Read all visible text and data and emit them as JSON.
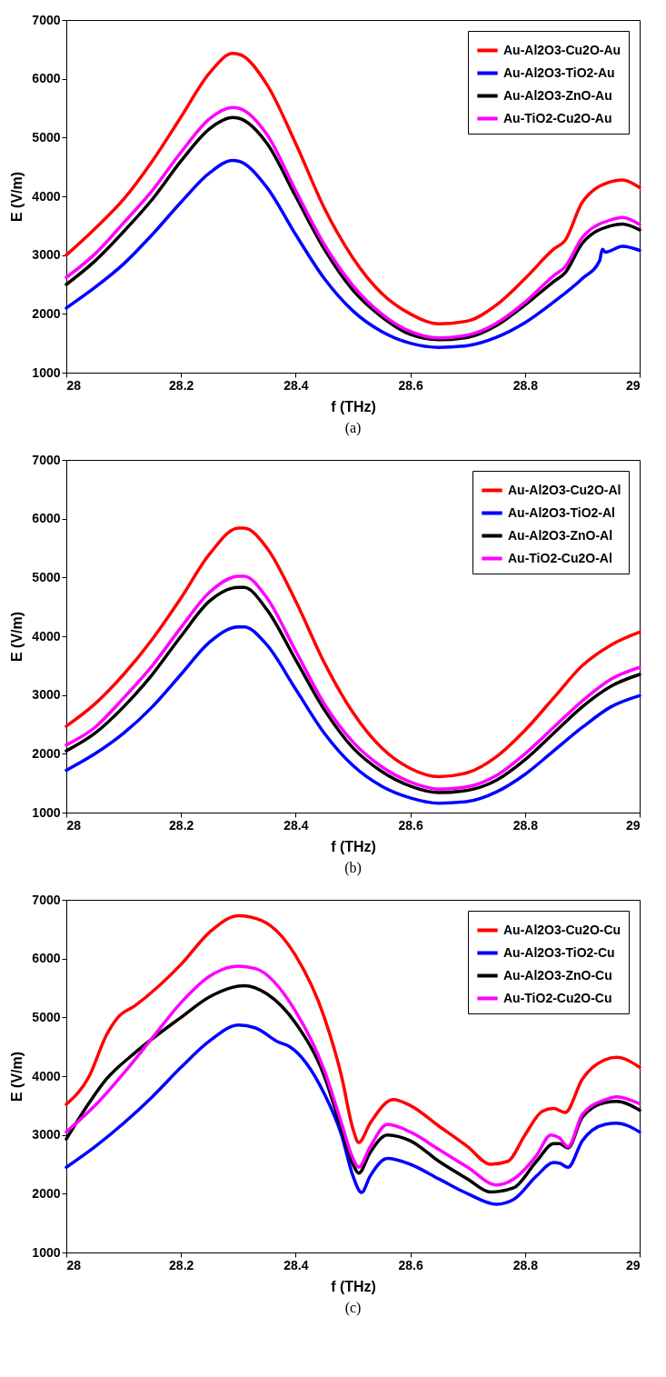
{
  "chart_data": [
    {
      "type": "line",
      "xlabel": "f (THz)",
      "ylabel": "E (V/m)",
      "annotations": [
        "(a)"
      ],
      "xlim": [
        28,
        29
      ],
      "ylim": [
        1000,
        7000
      ],
      "xticks": [
        28,
        28.2,
        28.4,
        28.6,
        28.8,
        29
      ],
      "yticks": [
        1000,
        2000,
        3000,
        4000,
        5000,
        6000,
        7000
      ],
      "grid": false,
      "legend": "top right",
      "line_style": "solid",
      "marker": "none",
      "series": [
        {
          "name": "Au-Al2O3-Cu2O-Au",
          "color": "#ff0000",
          "x": [
            28,
            28.05,
            28.1,
            28.15,
            28.2,
            28.25,
            28.29,
            28.3,
            28.35,
            28.4,
            28.45,
            28.5,
            28.55,
            28.6,
            28.65,
            28.7,
            28.75,
            28.8,
            28.85,
            28.87,
            28.9,
            28.95,
            28.97,
            29
          ],
          "values": [
            3000,
            3450,
            3950,
            4600,
            5350,
            6100,
            6430,
            6420,
            5900,
            4900,
            3800,
            2950,
            2350,
            2000,
            1830,
            1880,
            2150,
            2600,
            3100,
            3250,
            3900,
            4250,
            4280,
            4150
          ]
        },
        {
          "name": "Au-Al2O3-TiO2-Au",
          "color": "#0000ff",
          "x": [
            28,
            28.05,
            28.1,
            28.15,
            28.2,
            28.25,
            28.29,
            28.3,
            28.35,
            28.4,
            28.45,
            28.5,
            28.55,
            28.6,
            28.65,
            28.7,
            28.75,
            28.8,
            28.85,
            28.9,
            28.93,
            28.935,
            28.94,
            28.97,
            29
          ],
          "values": [
            2100,
            2450,
            2850,
            3350,
            3900,
            4400,
            4610,
            4600,
            4150,
            3350,
            2600,
            2050,
            1700,
            1500,
            1430,
            1460,
            1600,
            1850,
            2200,
            2600,
            2900,
            3100,
            3050,
            3150,
            3080
          ]
        },
        {
          "name": "Au-Al2O3-ZnO-Au",
          "color": "#000000",
          "x": [
            28,
            28.05,
            28.1,
            28.15,
            28.2,
            28.25,
            28.29,
            28.3,
            28.35,
            28.4,
            28.45,
            28.5,
            28.55,
            28.6,
            28.65,
            28.7,
            28.75,
            28.8,
            28.85,
            28.87,
            28.9,
            28.95,
            28.97,
            29
          ],
          "values": [
            2500,
            2900,
            3400,
            3950,
            4600,
            5150,
            5340,
            5330,
            4900,
            4000,
            3100,
            2400,
            1950,
            1650,
            1560,
            1600,
            1800,
            2150,
            2550,
            2700,
            3200,
            3500,
            3530,
            3430
          ]
        },
        {
          "name": "Au-TiO2-Cu2O-Au",
          "color": "#ff00ff",
          "x": [
            28,
            28.05,
            28.1,
            28.15,
            28.2,
            28.25,
            28.29,
            28.3,
            28.35,
            28.4,
            28.45,
            28.5,
            28.55,
            28.6,
            28.65,
            28.7,
            28.75,
            28.8,
            28.85,
            28.87,
            28.9,
            28.95,
            28.97,
            29
          ],
          "values": [
            2620,
            3020,
            3550,
            4100,
            4750,
            5320,
            5510,
            5500,
            5050,
            4100,
            3180,
            2480,
            2000,
            1700,
            1590,
            1640,
            1840,
            2200,
            2650,
            2800,
            3300,
            3600,
            3640,
            3520
          ]
        }
      ]
    },
    {
      "type": "line",
      "xlabel": "f (THz)",
      "ylabel": "E (V/m)",
      "annotations": [
        "(b)"
      ],
      "xlim": [
        28,
        29
      ],
      "ylim": [
        1000,
        7000
      ],
      "xticks": [
        28,
        28.2,
        28.4,
        28.6,
        28.8,
        29
      ],
      "yticks": [
        1000,
        2000,
        3000,
        4000,
        5000,
        6000,
        7000
      ],
      "grid": false,
      "legend": "top right",
      "line_style": "solid",
      "marker": "none",
      "series": [
        {
          "name": "Au-Al2O3-Cu2O-Al",
          "color": "#ff0000",
          "x": [
            28,
            28.05,
            28.1,
            28.15,
            28.2,
            28.25,
            28.3,
            28.31,
            28.35,
            28.4,
            28.45,
            28.5,
            28.55,
            28.6,
            28.65,
            28.7,
            28.75,
            28.8,
            28.85,
            28.9,
            28.95,
            29
          ],
          "values": [
            2470,
            2850,
            3350,
            3950,
            4650,
            5400,
            5840,
            5840,
            5500,
            4600,
            3550,
            2700,
            2100,
            1750,
            1610,
            1680,
            1950,
            2400,
            2950,
            3500,
            3850,
            4070
          ]
        },
        {
          "name": "Au-Al2O3-TiO2-Al",
          "color": "#0000ff",
          "x": [
            28,
            28.05,
            28.1,
            28.15,
            28.2,
            28.25,
            28.3,
            28.31,
            28.35,
            28.4,
            28.45,
            28.5,
            28.55,
            28.6,
            28.65,
            28.7,
            28.75,
            28.8,
            28.85,
            28.9,
            28.95,
            29
          ],
          "values": [
            1720,
            2000,
            2350,
            2800,
            3350,
            3900,
            4160,
            4160,
            3850,
            3100,
            2350,
            1800,
            1450,
            1250,
            1160,
            1190,
            1350,
            1650,
            2050,
            2450,
            2800,
            2990
          ]
        },
        {
          "name": "Au-Al2O3-ZnO-Al",
          "color": "#000000",
          "x": [
            28,
            28.05,
            28.1,
            28.15,
            28.2,
            28.25,
            28.3,
            28.31,
            28.35,
            28.4,
            28.45,
            28.5,
            28.55,
            28.6,
            28.65,
            28.7,
            28.75,
            28.8,
            28.85,
            28.9,
            28.95,
            29
          ],
          "values": [
            2050,
            2350,
            2800,
            3350,
            4000,
            4600,
            4830,
            4830,
            4450,
            3600,
            2750,
            2100,
            1700,
            1450,
            1340,
            1380,
            1550,
            1900,
            2350,
            2800,
            3150,
            3350
          ]
        },
        {
          "name": "Au-TiO2-Cu2O-Al",
          "color": "#ff00ff",
          "x": [
            28,
            28.05,
            28.1,
            28.15,
            28.2,
            28.25,
            28.3,
            28.31,
            28.35,
            28.4,
            28.45,
            28.5,
            28.55,
            28.6,
            28.65,
            28.7,
            28.75,
            28.8,
            28.85,
            28.9,
            28.95,
            29
          ],
          "values": [
            2150,
            2450,
            2950,
            3500,
            4150,
            4750,
            5020,
            5020,
            4650,
            3750,
            2850,
            2200,
            1780,
            1520,
            1400,
            1440,
            1630,
            2000,
            2450,
            2900,
            3270,
            3470
          ]
        }
      ]
    },
    {
      "type": "line",
      "xlabel": "f (THz)",
      "ylabel": "E (V/m)",
      "annotations": [
        "(c)"
      ],
      "xlim": [
        28,
        29
      ],
      "ylim": [
        1000,
        7000
      ],
      "xticks": [
        28,
        28.2,
        28.4,
        28.6,
        28.8,
        29
      ],
      "yticks": [
        1000,
        2000,
        3000,
        4000,
        5000,
        6000,
        7000
      ],
      "grid": false,
      "legend": "top right",
      "line_style": "solid",
      "marker": "none",
      "series": [
        {
          "name": "Au-Al2O3-Cu2O-Cu",
          "color": "#ff0000",
          "x": [
            28,
            28.04,
            28.07,
            28.09,
            28.12,
            28.2,
            28.25,
            28.3,
            28.34,
            28.4,
            28.45,
            28.48,
            28.5,
            28.51,
            28.53,
            28.57,
            28.6,
            28.65,
            28.7,
            28.74,
            28.77,
            28.8,
            28.83,
            28.85,
            28.87,
            28.9,
            28.94,
            28.96,
            29
          ],
          "values": [
            3520,
            4000,
            4700,
            5000,
            5200,
            5900,
            6450,
            6730,
            6650,
            6050,
            5000,
            4000,
            3100,
            2870,
            3200,
            3600,
            3500,
            3150,
            2800,
            2500,
            2550,
            3000,
            3400,
            3450,
            3380,
            3950,
            4280,
            4320,
            4150
          ]
        },
        {
          "name": "Au-Al2O3-TiO2-Cu",
          "color": "#0000ff",
          "x": [
            28,
            28.05,
            28.1,
            28.15,
            28.2,
            28.25,
            28.3,
            28.33,
            28.37,
            28.39,
            28.45,
            28.48,
            28.5,
            28.515,
            28.53,
            28.56,
            28.6,
            28.65,
            28.7,
            28.75,
            28.78,
            28.82,
            28.85,
            28.86,
            28.875,
            28.9,
            28.94,
            28.96,
            29
          ],
          "values": [
            2450,
            2800,
            3200,
            3650,
            4150,
            4600,
            4870,
            4820,
            4580,
            4500,
            3700,
            3000,
            2300,
            2020,
            2300,
            2600,
            2500,
            2250,
            2000,
            1820,
            1900,
            2300,
            2530,
            2520,
            2450,
            2900,
            3180,
            3200,
            3050
          ]
        },
        {
          "name": "Au-Al2O3-ZnO-Cu",
          "color": "#000000",
          "x": [
            28,
            28.03,
            28.07,
            28.12,
            28.2,
            28.25,
            28.31,
            28.35,
            28.4,
            28.45,
            28.48,
            28.5,
            28.51,
            28.53,
            28.56,
            28.6,
            28.65,
            28.7,
            28.74,
            28.78,
            28.82,
            28.85,
            28.86,
            28.875,
            28.9,
            28.94,
            28.96,
            29
          ],
          "values": [
            2930,
            3400,
            3950,
            4400,
            5000,
            5350,
            5540,
            5400,
            4900,
            4000,
            3100,
            2500,
            2350,
            2700,
            3000,
            2900,
            2550,
            2250,
            2030,
            2100,
            2550,
            2850,
            2850,
            2780,
            3300,
            3550,
            3570,
            3420
          ]
        },
        {
          "name": "Au-TiO2-Cu2O-Cu",
          "color": "#ff00ff",
          "x": [
            28,
            28.05,
            28.1,
            28.15,
            28.2,
            28.25,
            28.3,
            28.33,
            28.4,
            28.45,
            28.48,
            28.5,
            28.51,
            28.53,
            28.56,
            28.6,
            28.65,
            28.7,
            28.75,
            28.78,
            28.82,
            28.845,
            28.86,
            28.875,
            28.9,
            28.94,
            28.96,
            29
          ],
          "values": [
            3050,
            3500,
            4050,
            4650,
            5250,
            5700,
            5870,
            5830,
            5100,
            4100,
            3200,
            2600,
            2450,
            2800,
            3180,
            3050,
            2750,
            2450,
            2150,
            2250,
            2650,
            3000,
            2950,
            2800,
            3350,
            3600,
            3650,
            3530
          ]
        }
      ]
    }
  ]
}
